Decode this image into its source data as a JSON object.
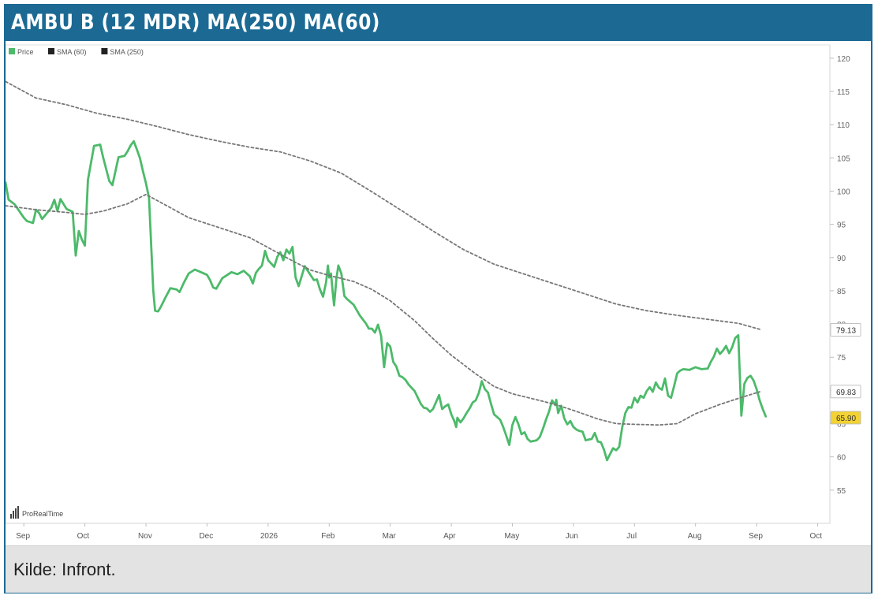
{
  "header": {
    "title": "AMBU B (12 MDR) MA(250) MA(60)"
  },
  "footer": {
    "source": "Kilde: Infront."
  },
  "watermark": {
    "text": "ProRealTime"
  },
  "colors": {
    "header_bg": "#1c6a94",
    "price": "#4cba6a",
    "sma": "#777777",
    "badge_ma60": "#ffffff",
    "badge_price": "#f3d233"
  },
  "chart_data": {
    "type": "line",
    "title": "AMBU B (12 MDR) MA(250) MA(60)",
    "ylim": [
      50,
      122
    ],
    "y_ticks": [
      55,
      60,
      65,
      70,
      75,
      80,
      85,
      90,
      95,
      100,
      105,
      110,
      115,
      120
    ],
    "x_ticks": [
      {
        "label": "Sep",
        "x": 0.3
      },
      {
        "label": "Oct",
        "x": 1.3
      },
      {
        "label": "Nov",
        "x": 2.3
      },
      {
        "label": "Dec",
        "x": 3.3
      },
      {
        "label": "2026",
        "x": 4.3
      },
      {
        "label": "Feb",
        "x": 5.3
      },
      {
        "label": "Mar",
        "x": 6.3
      },
      {
        "label": "Apr",
        "x": 7.3
      },
      {
        "label": "May",
        "x": 8.3
      },
      {
        "label": "Jun",
        "x": 9.3
      },
      {
        "label": "Jul",
        "x": 10.3
      },
      {
        "label": "Aug",
        "x": 11.3
      },
      {
        "label": "Sep",
        "x": 12.3
      },
      {
        "label": "Oct",
        "x": 13.3
      }
    ],
    "xlim": [
      0,
      13.5
    ],
    "legend": {
      "placement": "top-left",
      "entries": [
        "Price",
        "SMA (60)",
        "SMA (250)"
      ]
    },
    "series": [
      {
        "name": "Price",
        "color": "#4cba6a",
        "points": [
          [
            0,
            101.3
          ],
          [
            0.05,
            98.7
          ],
          [
            0.15,
            98
          ],
          [
            0.3,
            96
          ],
          [
            0.35,
            95.5
          ],
          [
            0.45,
            95.2
          ],
          [
            0.5,
            97.2
          ],
          [
            0.55,
            96.7
          ],
          [
            0.6,
            95.8
          ],
          [
            0.75,
            97.5
          ],
          [
            0.8,
            98.7
          ],
          [
            0.85,
            97
          ],
          [
            0.9,
            98.8
          ],
          [
            1.0,
            97.3
          ],
          [
            1.1,
            96.9
          ],
          [
            1.15,
            90.3
          ],
          [
            1.2,
            94
          ],
          [
            1.25,
            92.7
          ],
          [
            1.3,
            91.8
          ],
          [
            1.35,
            101.7
          ],
          [
            1.45,
            106.8
          ],
          [
            1.55,
            107
          ],
          [
            1.6,
            105
          ],
          [
            1.7,
            101.5
          ],
          [
            1.75,
            100.9
          ],
          [
            1.85,
            105.1
          ],
          [
            1.95,
            105.3
          ],
          [
            2.0,
            106
          ],
          [
            2.05,
            106.9
          ],
          [
            2.1,
            107.5
          ],
          [
            2.15,
            106.3
          ],
          [
            2.2,
            105
          ],
          [
            2.25,
            103
          ],
          [
            2.3,
            101.2
          ],
          [
            2.35,
            99
          ],
          [
            2.42,
            85
          ],
          [
            2.45,
            82
          ],
          [
            2.5,
            81.9
          ],
          [
            2.55,
            82.7
          ],
          [
            2.62,
            84
          ],
          [
            2.7,
            85.4
          ],
          [
            2.8,
            85.2
          ],
          [
            2.85,
            84.8
          ],
          [
            2.92,
            86.2
          ],
          [
            3.0,
            87.6
          ],
          [
            3.1,
            88.2
          ],
          [
            3.2,
            87.8
          ],
          [
            3.3,
            87.4
          ],
          [
            3.35,
            86.6
          ],
          [
            3.4,
            85.5
          ],
          [
            3.45,
            85.3
          ],
          [
            3.55,
            86.9
          ],
          [
            3.6,
            87.2
          ],
          [
            3.7,
            87.8
          ],
          [
            3.8,
            87.5
          ],
          [
            3.9,
            88
          ],
          [
            4.0,
            87.2
          ],
          [
            4.05,
            86.1
          ],
          [
            4.1,
            87.7
          ],
          [
            4.15,
            88.3
          ],
          [
            4.2,
            88.8
          ],
          [
            4.25,
            91
          ],
          [
            4.3,
            89.6
          ],
          [
            4.4,
            88.6
          ],
          [
            4.45,
            90.1
          ],
          [
            4.5,
            90.8
          ],
          [
            4.55,
            89.6
          ],
          [
            4.6,
            91.2
          ],
          [
            4.65,
            90.6
          ],
          [
            4.7,
            91.6
          ],
          [
            4.75,
            87
          ],
          [
            4.8,
            85.7
          ],
          [
            4.9,
            88.7
          ],
          [
            5.0,
            87.3
          ],
          [
            5.05,
            86.6
          ],
          [
            5.1,
            86.7
          ],
          [
            5.15,
            85.2
          ],
          [
            5.2,
            84.1
          ],
          [
            5.25,
            86.3
          ],
          [
            5.28,
            88.8
          ],
          [
            5.3,
            87
          ],
          [
            5.33,
            87.6
          ],
          [
            5.36,
            84.6
          ],
          [
            5.38,
            82.8
          ],
          [
            5.42,
            86.9
          ],
          [
            5.45,
            88.8
          ],
          [
            5.5,
            87.6
          ],
          [
            5.55,
            84.2
          ],
          [
            5.6,
            83.7
          ],
          [
            5.7,
            82.9
          ],
          [
            5.8,
            81.3
          ],
          [
            5.9,
            80.1
          ],
          [
            5.95,
            79.3
          ],
          [
            6.0,
            79.3
          ],
          [
            6.05,
            78.7
          ],
          [
            6.1,
            79.9
          ],
          [
            6.15,
            78.2
          ],
          [
            6.2,
            73.5
          ],
          [
            6.25,
            77.1
          ],
          [
            6.3,
            76.6
          ],
          [
            6.35,
            74.3
          ],
          [
            6.4,
            73.6
          ],
          [
            6.45,
            72.2
          ],
          [
            6.5,
            72
          ],
          [
            6.55,
            71.6
          ],
          [
            6.6,
            70.9
          ],
          [
            6.7,
            69.9
          ],
          [
            6.8,
            68
          ],
          [
            6.85,
            67.4
          ],
          [
            6.9,
            67.3
          ],
          [
            6.95,
            66.8
          ],
          [
            7.0,
            67.2
          ],
          [
            7.1,
            69.3
          ],
          [
            7.15,
            67.2
          ],
          [
            7.2,
            67.6
          ],
          [
            7.25,
            67.9
          ],
          [
            7.3,
            66.4
          ],
          [
            7.35,
            65.4
          ],
          [
            7.38,
            64.5
          ],
          [
            7.4,
            65.9
          ],
          [
            7.45,
            65.2
          ],
          [
            7.5,
            65.8
          ],
          [
            7.55,
            66.6
          ],
          [
            7.6,
            67.3
          ],
          [
            7.65,
            68.2
          ],
          [
            7.7,
            68.5
          ],
          [
            7.75,
            69.6
          ],
          [
            7.8,
            71.4
          ],
          [
            7.85,
            70.2
          ],
          [
            7.9,
            69.7
          ],
          [
            7.95,
            68
          ],
          [
            8.0,
            66.4
          ],
          [
            8.1,
            65.6
          ],
          [
            8.15,
            64.5
          ],
          [
            8.2,
            63.2
          ],
          [
            8.25,
            61.8
          ],
          [
            8.3,
            64.8
          ],
          [
            8.35,
            66
          ],
          [
            8.4,
            64.9
          ],
          [
            8.45,
            63.4
          ],
          [
            8.5,
            63.7
          ],
          [
            8.55,
            62.7
          ],
          [
            8.6,
            62.3
          ],
          [
            8.7,
            62.5
          ],
          [
            8.75,
            63
          ],
          [
            8.8,
            64.2
          ],
          [
            8.85,
            65.6
          ],
          [
            8.9,
            66.8
          ],
          [
            8.95,
            68.5
          ],
          [
            9.0,
            67.8
          ],
          [
            9.02,
            68.6
          ],
          [
            9.05,
            66.6
          ],
          [
            9.1,
            67.7
          ],
          [
            9.15,
            65.8
          ],
          [
            9.2,
            64.9
          ],
          [
            9.25,
            65.4
          ],
          [
            9.3,
            64.5
          ],
          [
            9.35,
            64.1
          ],
          [
            9.4,
            63.9
          ],
          [
            9.45,
            63.8
          ],
          [
            9.5,
            62.5
          ],
          [
            9.6,
            62.7
          ],
          [
            9.65,
            63.6
          ],
          [
            9.7,
            62.3
          ],
          [
            9.75,
            62.2
          ],
          [
            9.8,
            61.1
          ],
          [
            9.85,
            59.5
          ],
          [
            9.9,
            60.4
          ],
          [
            9.95,
            61.3
          ],
          [
            10.0,
            61
          ],
          [
            10.05,
            61.5
          ],
          [
            10.1,
            64.5
          ],
          [
            10.15,
            66.6
          ],
          [
            10.2,
            67.5
          ],
          [
            10.25,
            67.4
          ],
          [
            10.3,
            68.9
          ],
          [
            10.35,
            68.2
          ],
          [
            10.4,
            69.2
          ],
          [
            10.45,
            68.9
          ],
          [
            10.5,
            69.9
          ],
          [
            10.55,
            70.5
          ],
          [
            10.6,
            69.8
          ],
          [
            10.65,
            71.2
          ],
          [
            10.7,
            70.4
          ],
          [
            10.75,
            70.1
          ],
          [
            10.8,
            71.8
          ],
          [
            10.85,
            69.2
          ],
          [
            10.9,
            68.9
          ],
          [
            10.95,
            70.7
          ],
          [
            11.0,
            72.6
          ],
          [
            11.05,
            73
          ],
          [
            11.1,
            73.2
          ],
          [
            11.2,
            73.1
          ],
          [
            11.3,
            73.5
          ],
          [
            11.4,
            73.2
          ],
          [
            11.5,
            73.3
          ],
          [
            11.55,
            74.3
          ],
          [
            11.6,
            75.1
          ],
          [
            11.65,
            76.3
          ],
          [
            11.7,
            75.5
          ],
          [
            11.75,
            76
          ],
          [
            11.8,
            76.7
          ],
          [
            11.85,
            75.6
          ],
          [
            11.9,
            76.5
          ],
          [
            11.95,
            77.9
          ],
          [
            12.0,
            78.3
          ],
          [
            12.05,
            66.2
          ],
          [
            12.1,
            71
          ],
          [
            12.15,
            71.9
          ],
          [
            12.2,
            72.2
          ],
          [
            12.25,
            71.5
          ],
          [
            12.3,
            70.2
          ],
          [
            12.35,
            68.5
          ],
          [
            12.4,
            67.2
          ],
          [
            12.45,
            66.1
          ]
        ]
      },
      {
        "name": "SMA (60)",
        "color": "#777777",
        "points": [
          [
            0,
            97.8
          ],
          [
            0.5,
            97.2
          ],
          [
            1.0,
            96.8
          ],
          [
            1.3,
            96.5
          ],
          [
            1.6,
            97
          ],
          [
            2.0,
            98.1
          ],
          [
            2.3,
            99.5
          ],
          [
            2.7,
            97.5
          ],
          [
            3.0,
            96
          ],
          [
            3.5,
            94.5
          ],
          [
            4.0,
            93
          ],
          [
            4.3,
            91.5
          ],
          [
            4.7,
            89.5
          ],
          [
            5.0,
            88.1
          ],
          [
            5.3,
            87.3
          ],
          [
            5.7,
            86.4
          ],
          [
            6.0,
            85.2
          ],
          [
            6.3,
            83.5
          ],
          [
            6.7,
            80.5
          ],
          [
            7.0,
            77.8
          ],
          [
            7.3,
            75.3
          ],
          [
            7.7,
            72.5
          ],
          [
            8.0,
            70.6
          ],
          [
            8.3,
            69.5
          ],
          [
            8.7,
            68.6
          ],
          [
            9.0,
            67.9
          ],
          [
            9.3,
            67
          ],
          [
            9.7,
            65.7
          ],
          [
            10.0,
            65
          ],
          [
            10.3,
            64.9
          ],
          [
            10.7,
            64.8
          ],
          [
            11.0,
            65
          ],
          [
            11.3,
            66.5
          ],
          [
            11.7,
            67.9
          ],
          [
            12.0,
            68.8
          ],
          [
            12.35,
            69.8
          ]
        ]
      },
      {
        "name": "SMA (250)",
        "color": "#777777",
        "points": [
          [
            0,
            116.5
          ],
          [
            0.5,
            114
          ],
          [
            1.0,
            113
          ],
          [
            1.5,
            111.7
          ],
          [
            2.0,
            110.8
          ],
          [
            2.5,
            109.7
          ],
          [
            3.0,
            108.5
          ],
          [
            3.5,
            107.5
          ],
          [
            4.0,
            106.6
          ],
          [
            4.5,
            105.9
          ],
          [
            5.0,
            104.5
          ],
          [
            5.5,
            102.7
          ],
          [
            6.0,
            99.9
          ],
          [
            6.5,
            97
          ],
          [
            7.0,
            94
          ],
          [
            7.5,
            91.2
          ],
          [
            8.0,
            89
          ],
          [
            8.5,
            87.5
          ],
          [
            9.0,
            86
          ],
          [
            9.5,
            84.5
          ],
          [
            10.0,
            83
          ],
          [
            10.5,
            82
          ],
          [
            11.0,
            81.3
          ],
          [
            11.5,
            80.7
          ],
          [
            12.0,
            80.1
          ],
          [
            12.35,
            79.2
          ]
        ]
      }
    ],
    "badges": [
      {
        "label": "79.13",
        "value": 79.13,
        "bg": "#ffffff"
      },
      {
        "label": "69.83",
        "value": 69.83,
        "bg": "#ffffff"
      },
      {
        "label": "65.90",
        "value": 65.9,
        "bg": "#f3d233"
      }
    ]
  }
}
